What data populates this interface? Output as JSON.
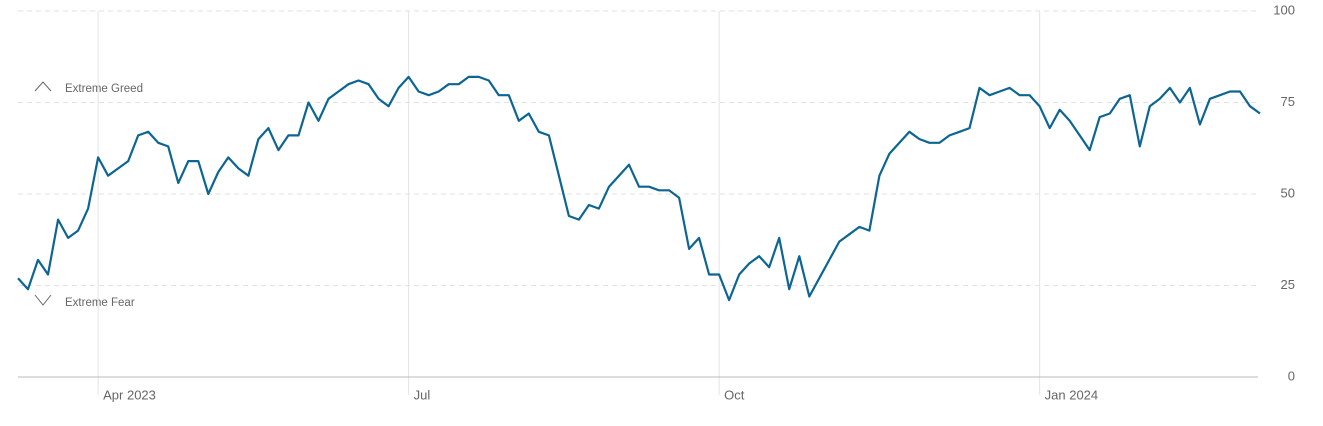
{
  "chart_data": {
    "type": "line",
    "categories": [
      null,
      null,
      null,
      null,
      null,
      null,
      null,
      null,
      "Apr 2023",
      null,
      null,
      null,
      null,
      null,
      null,
      null,
      null,
      null,
      null,
      null,
      null,
      null,
      null,
      null,
      null,
      null,
      null,
      null,
      null,
      null,
      null,
      null,
      null,
      null,
      null,
      null,
      null,
      null,
      null,
      "Jul",
      null,
      null,
      null,
      null,
      null,
      null,
      null,
      null,
      null,
      null,
      null,
      null,
      null,
      null,
      null,
      null,
      null,
      null,
      null,
      null,
      null,
      null,
      null,
      null,
      null,
      null,
      null,
      null,
      null,
      null,
      "Oct",
      null,
      null,
      null,
      null,
      null,
      null,
      null,
      null,
      null,
      null,
      null,
      null,
      null,
      null,
      null,
      null,
      null,
      null,
      null,
      null,
      null,
      null,
      null,
      null,
      null,
      null,
      null,
      null,
      null,
      null,
      null,
      "Jan 2024",
      null,
      null,
      null,
      null,
      null,
      null,
      null,
      null,
      null,
      null,
      null,
      null,
      null,
      null,
      null,
      null,
      null,
      null,
      null,
      null,
      null,
      null
    ],
    "values": [
      27,
      24,
      32,
      28,
      43,
      38,
      40,
      46,
      60,
      55,
      57,
      59,
      66,
      67,
      64,
      63,
      53,
      59,
      59,
      50,
      56,
      60,
      57,
      55,
      65,
      68,
      62,
      66,
      66,
      75,
      70,
      76,
      78,
      80,
      81,
      80,
      76,
      74,
      79,
      82,
      78,
      77,
      78,
      80,
      80,
      82,
      82,
      81,
      77,
      77,
      70,
      72,
      67,
      66,
      55,
      44,
      43,
      47,
      46,
      52,
      55,
      58,
      52,
      52,
      51,
      51,
      49,
      35,
      38,
      28,
      28,
      21,
      28,
      31,
      33,
      30,
      38,
      24,
      33,
      22,
      27,
      32,
      37,
      39,
      41,
      40,
      55,
      61,
      64,
      67,
      65,
      64,
      64,
      66,
      67,
      68,
      79,
      77,
      78,
      79,
      77,
      77,
      74,
      68,
      73,
      70,
      66,
      62,
      71,
      72,
      76,
      77,
      63,
      74,
      76,
      79,
      75,
      79,
      69,
      76,
      77,
      78,
      78,
      74,
      72
    ],
    "color": "#0c6593",
    "ylim": [
      0,
      100
    ],
    "yticks": [
      0,
      25,
      50,
      75,
      100
    ],
    "grid": true,
    "annotations": [
      "Extreme Greed",
      "Extreme Fear"
    ]
  }
}
